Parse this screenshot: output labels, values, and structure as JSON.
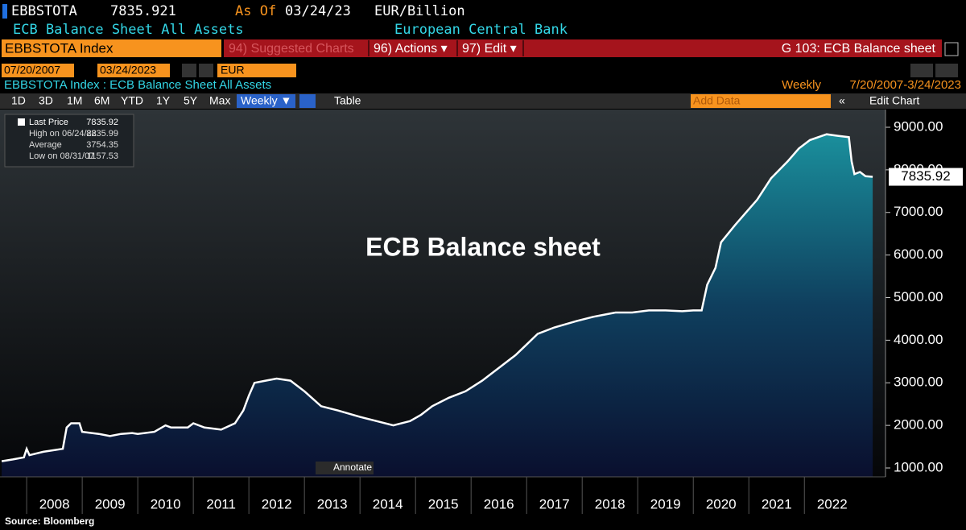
{
  "terminal": {
    "ticker": "EBBSTOTA",
    "price": 7835.921,
    "as_of_label": "As Of",
    "as_of_date": "03/24/23",
    "units": "EUR/Billion",
    "description": "ECB Balance Sheet All Assets",
    "source": "European Central Bank",
    "security": "EBBSTOTA Index",
    "menu": [
      "94) Suggested Charts",
      "96) Actions ▾",
      "97) Edit ▾"
    ],
    "page_title": "G 103: ECB Balance sheet",
    "start_date": "07/20/2007",
    "end_date": "03/24/2023",
    "currency": "EUR",
    "chart_caption": "EBBSTOTA Index : ECB Balance Sheet All Assets",
    "frequency": "Weekly",
    "date_range": "7/20/2007-3/24/2023",
    "ranges": [
      "1D",
      "3D",
      "1M",
      "6M",
      "YTD",
      "1Y",
      "5Y",
      "Max"
    ],
    "period_button": "Weekly ▼",
    "table_button": "Table",
    "add_data": "Add Data",
    "edit_chart": "Edit Chart",
    "annotate": "Annotate",
    "footer": "Source: Bloomberg"
  },
  "chart_data": {
    "type": "area",
    "annotation": "ECB Balance sheet",
    "series": [
      {
        "name": "Last Price",
        "color": "#ffffff",
        "x": [
          2007.55,
          2007.75,
          2007.95,
          2008.0,
          2008.05,
          2008.3,
          2008.65,
          2008.72,
          2008.8,
          2008.95,
          2009.0,
          2009.3,
          2009.5,
          2009.7,
          2009.9,
          2010.0,
          2010.3,
          2010.5,
          2010.6,
          2010.9,
          2011.0,
          2011.2,
          2011.5,
          2011.75,
          2011.9,
          2012.0,
          2012.1,
          2012.3,
          2012.5,
          2012.75,
          2013.0,
          2013.3,
          2013.6,
          2014.0,
          2014.3,
          2014.6,
          2014.9,
          2015.1,
          2015.3,
          2015.6,
          2015.9,
          2016.2,
          2016.5,
          2016.8,
          2017.0,
          2017.2,
          2017.5,
          2017.9,
          2018.2,
          2018.6,
          2018.9,
          2019.2,
          2019.5,
          2019.8,
          2020.0,
          2020.15,
          2020.25,
          2020.4,
          2020.5,
          2020.75,
          2020.95,
          2021.15,
          2021.4,
          2021.7,
          2021.9,
          2022.1,
          2022.4,
          2022.6,
          2022.8,
          2022.85,
          2022.9,
          2023.0,
          2023.1,
          2023.23
        ],
        "values": [
          1158,
          1200,
          1250,
          1450,
          1300,
          1380,
          1450,
          1950,
          2050,
          2050,
          1850,
          1800,
          1750,
          1800,
          1820,
          1800,
          1850,
          2000,
          1950,
          1950,
          2050,
          1950,
          1900,
          2050,
          2350,
          2700,
          3000,
          3050,
          3100,
          3050,
          2800,
          2450,
          2350,
          2200,
          2100,
          2000,
          2100,
          2250,
          2450,
          2650,
          2800,
          3050,
          3350,
          3650,
          3900,
          4150,
          4300,
          4450,
          4550,
          4650,
          4650,
          4700,
          4700,
          4680,
          4700,
          4700,
          5300,
          5700,
          6300,
          6700,
          7000,
          7300,
          7800,
          8200,
          8500,
          8700,
          8836,
          8800,
          8770,
          8200,
          7900,
          7950,
          7850,
          7836
        ]
      }
    ],
    "last_value": 7835.92,
    "stats": [
      {
        "label": "High on 06/24/22",
        "value": 8835.99
      },
      {
        "label": "Average",
        "value": 3754.35
      },
      {
        "label": "Low on 08/31/07",
        "value": 1157.53
      }
    ],
    "xlim": [
      2007.52,
      2023.46
    ],
    "xticks": [
      2008,
      2009,
      2010,
      2011,
      2012,
      2013,
      2014,
      2015,
      2016,
      2017,
      2018,
      2019,
      2020,
      2021,
      2022
    ],
    "ylim": [
      792,
      9416
    ],
    "yticks": [
      {
        "value": 1000,
        "label": "1000.00"
      },
      {
        "value": 2000,
        "label": "2000.00"
      },
      {
        "value": 3000,
        "label": "3000.00"
      },
      {
        "value": 4000,
        "label": "4000.00"
      },
      {
        "value": 5000,
        "label": "5000.00"
      },
      {
        "value": 6000,
        "label": "6000.00"
      },
      {
        "value": 7000,
        "label": "7000.00"
      },
      {
        "value": 8000,
        "label": "8000.00"
      },
      {
        "value": 9000,
        "label": "9000.00"
      }
    ]
  }
}
